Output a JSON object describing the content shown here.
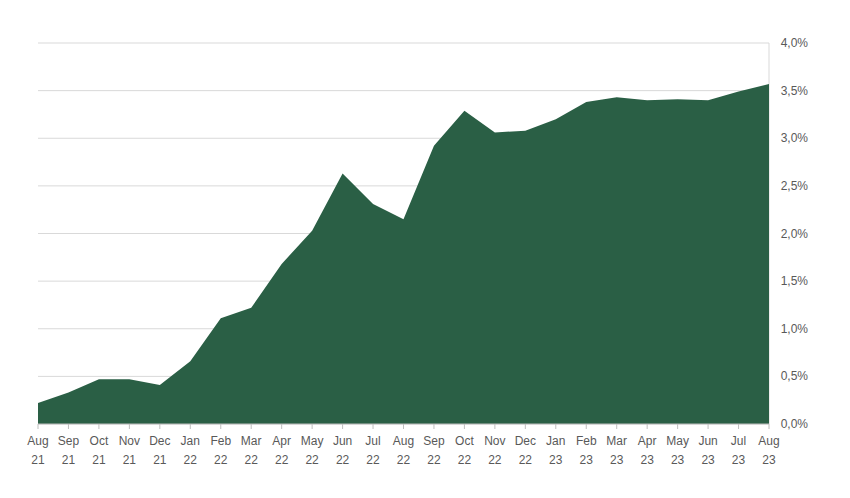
{
  "chart_data": {
    "type": "area",
    "categories": [
      "Aug 21",
      "Sep 21",
      "Oct 21",
      "Nov 21",
      "Dec 21",
      "Jan 22",
      "Feb 22",
      "Mar 22",
      "Apr 22",
      "May 22",
      "Jun 22",
      "Jul 22",
      "Aug 22",
      "Sep 22",
      "Oct 22",
      "Nov 22",
      "Dec 22",
      "Jan 23",
      "Feb 23",
      "Mar 23",
      "Apr 23",
      "May 23",
      "Jun 23",
      "Jul 23",
      "Aug 23"
    ],
    "values": [
      0.22,
      0.33,
      0.47,
      0.47,
      0.41,
      0.66,
      1.11,
      1.22,
      1.68,
      2.03,
      2.63,
      2.31,
      2.15,
      2.92,
      3.29,
      3.06,
      3.08,
      3.2,
      3.38,
      3.43,
      3.4,
      3.41,
      3.4,
      3.49,
      3.57
    ],
    "color": "#2a5f45",
    "ylim": [
      0,
      4
    ],
    "yticks": [
      {
        "value": 0,
        "label": "0,0%"
      },
      {
        "value": 0.5,
        "label": "0,5%"
      },
      {
        "value": 1,
        "label": "1,0%"
      },
      {
        "value": 1.5,
        "label": "1,5%"
      },
      {
        "value": 2,
        "label": "2,0%"
      },
      {
        "value": 2.5,
        "label": "2,5%"
      },
      {
        "value": 3,
        "label": "3,0%"
      },
      {
        "value": 3.5,
        "label": "3,5%"
      },
      {
        "value": 4,
        "label": "4,0%"
      }
    ],
    "grid": true
  }
}
